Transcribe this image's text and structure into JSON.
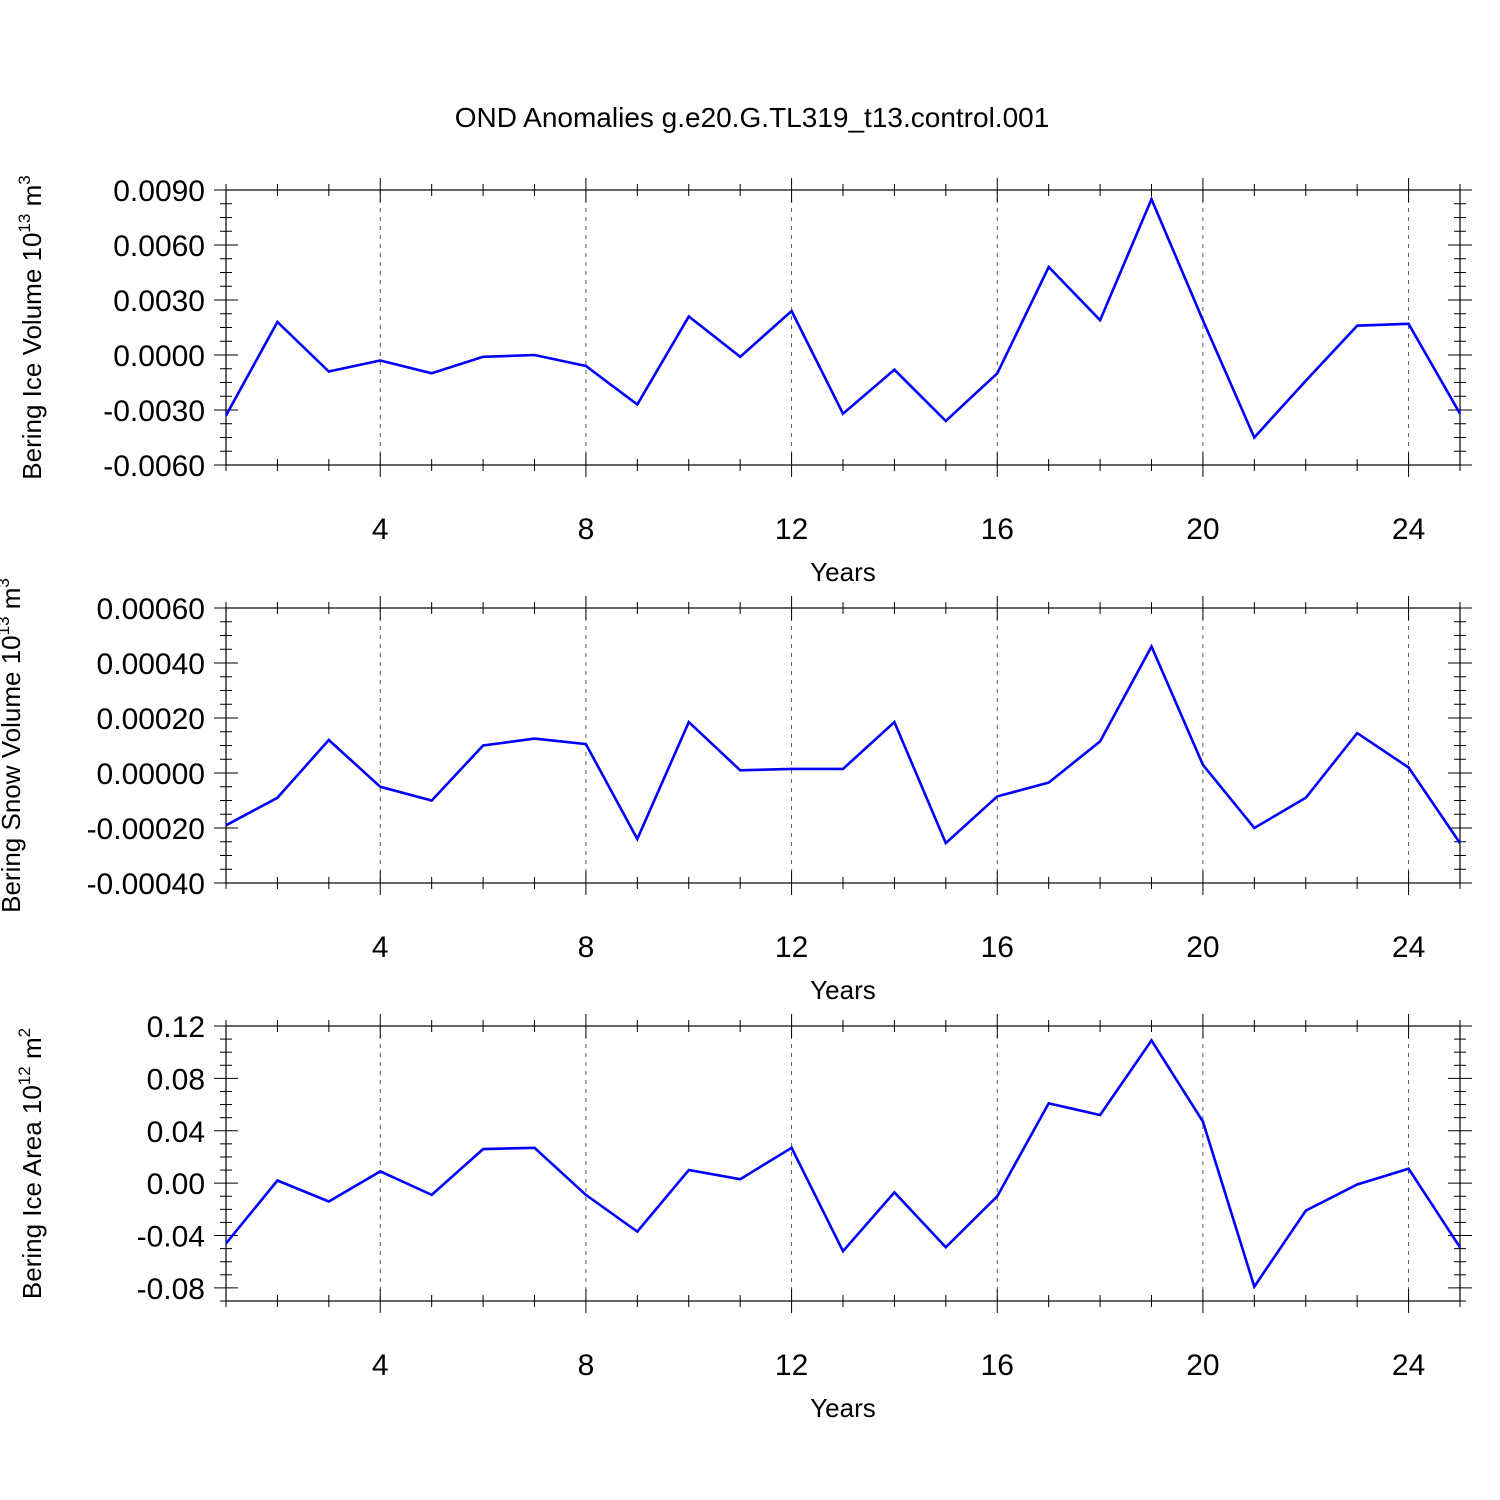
{
  "figure": {
    "title": "OND Anomalies g.e20.G.TL319_t13.control.001"
  },
  "style": {
    "line_color": "#0000ff",
    "axis_color": "#000000",
    "grid_color": "#000000"
  },
  "chart_data": [
    {
      "type": "line",
      "title": "",
      "xlabel": "Years",
      "ylabel": "Bering Ice Volume 10",
      "ylabel_exponent": "13",
      "ylabel_unit": " m",
      "ylabel_unit_exponent": "3",
      "xlim": [
        1,
        25
      ],
      "ylim": [
        -0.006,
        0.009
      ],
      "xticks": [
        4,
        8,
        12,
        16,
        20,
        24
      ],
      "xtick_labels": [
        "4",
        "8",
        "12",
        "16",
        "20",
        "24"
      ],
      "yticks": [
        -0.006,
        -0.003,
        0.0,
        0.003,
        0.006,
        0.009
      ],
      "ytick_labels": [
        "-0.0060",
        "-0.0030",
        "0.0000",
        "0.0030",
        "0.0060",
        "0.0090"
      ],
      "grid": "vertical dashed at major x ticks",
      "series": [
        {
          "x": [
            1,
            2,
            3,
            4,
            5,
            6,
            7,
            8,
            9,
            10,
            11,
            12,
            13,
            14,
            15,
            16,
            17,
            18,
            19,
            20,
            21,
            22,
            23,
            24,
            25
          ],
          "values": [
            -0.0033,
            0.0018,
            -0.0009,
            -0.0003,
            -0.001,
            -0.0001,
            0.0,
            -0.0006,
            -0.0027,
            0.0021,
            -0.0001,
            0.0024,
            -0.0032,
            -0.0008,
            -0.0036,
            -0.001,
            0.0048,
            0.0019,
            0.0085,
            0.0019,
            -0.0045,
            -0.0014,
            0.0016,
            0.0017,
            -0.0032
          ]
        }
      ]
    },
    {
      "type": "line",
      "title": "",
      "xlabel": "Years",
      "ylabel": "Bering Snow Volume 10",
      "ylabel_exponent": "13",
      "ylabel_unit": " m",
      "ylabel_unit_exponent": "3",
      "xlim": [
        1,
        25
      ],
      "ylim": [
        -0.0004,
        0.0006
      ],
      "xticks": [
        4,
        8,
        12,
        16,
        20,
        24
      ],
      "xtick_labels": [
        "4",
        "8",
        "12",
        "16",
        "20",
        "24"
      ],
      "yticks": [
        -0.0004,
        -0.0002,
        0.0,
        0.0002,
        0.0004,
        0.0006
      ],
      "ytick_labels": [
        "-0.00040",
        "-0.00020",
        "0.00000",
        "0.00020",
        "0.00040",
        "0.00060"
      ],
      "grid": "vertical dashed at major x ticks",
      "series": [
        {
          "x": [
            1,
            2,
            3,
            4,
            5,
            6,
            7,
            8,
            9,
            10,
            11,
            12,
            13,
            14,
            15,
            16,
            17,
            18,
            19,
            20,
            21,
            22,
            23,
            24,
            25
          ],
          "values": [
            -0.00019,
            -9e-05,
            0.00012,
            -5e-05,
            -0.0001,
            0.0001,
            0.000125,
            0.000105,
            -0.00024,
            0.000185,
            1e-05,
            1.5e-05,
            1.5e-05,
            0.000185,
            -0.000255,
            -8.5e-05,
            -3.5e-05,
            0.000115,
            0.00046,
            3e-05,
            -0.0002,
            -9e-05,
            0.000145,
            2e-05,
            -0.000255
          ]
        }
      ]
    },
    {
      "type": "line",
      "title": "",
      "xlabel": "Years",
      "ylabel": "Bering Ice Area 10",
      "ylabel_exponent": "12",
      "ylabel_unit": " m",
      "ylabel_unit_exponent": "2",
      "xlim": [
        1,
        25
      ],
      "ylim": [
        -0.09,
        0.12
      ],
      "xticks": [
        4,
        8,
        12,
        16,
        20,
        24
      ],
      "xtick_labels": [
        "4",
        "8",
        "12",
        "16",
        "20",
        "24"
      ],
      "yticks": [
        -0.08,
        -0.04,
        0.0,
        0.04,
        0.08,
        0.12
      ],
      "ytick_labels": [
        "-0.08",
        "-0.04",
        "0.00",
        "0.04",
        "0.08",
        "0.12"
      ],
      "grid": "vertical dashed at major x ticks",
      "series": [
        {
          "x": [
            1,
            2,
            3,
            4,
            5,
            6,
            7,
            8,
            9,
            10,
            11,
            12,
            13,
            14,
            15,
            16,
            17,
            18,
            19,
            20,
            21,
            22,
            23,
            24,
            25
          ],
          "values": [
            -0.046,
            0.002,
            -0.014,
            0.009,
            -0.009,
            0.026,
            0.027,
            -0.009,
            -0.037,
            0.01,
            0.003,
            0.027,
            -0.052,
            -0.007,
            -0.049,
            -0.01,
            0.061,
            0.052,
            0.109,
            0.047,
            -0.079,
            -0.021,
            -0.001,
            0.011,
            -0.049
          ]
        }
      ]
    }
  ]
}
